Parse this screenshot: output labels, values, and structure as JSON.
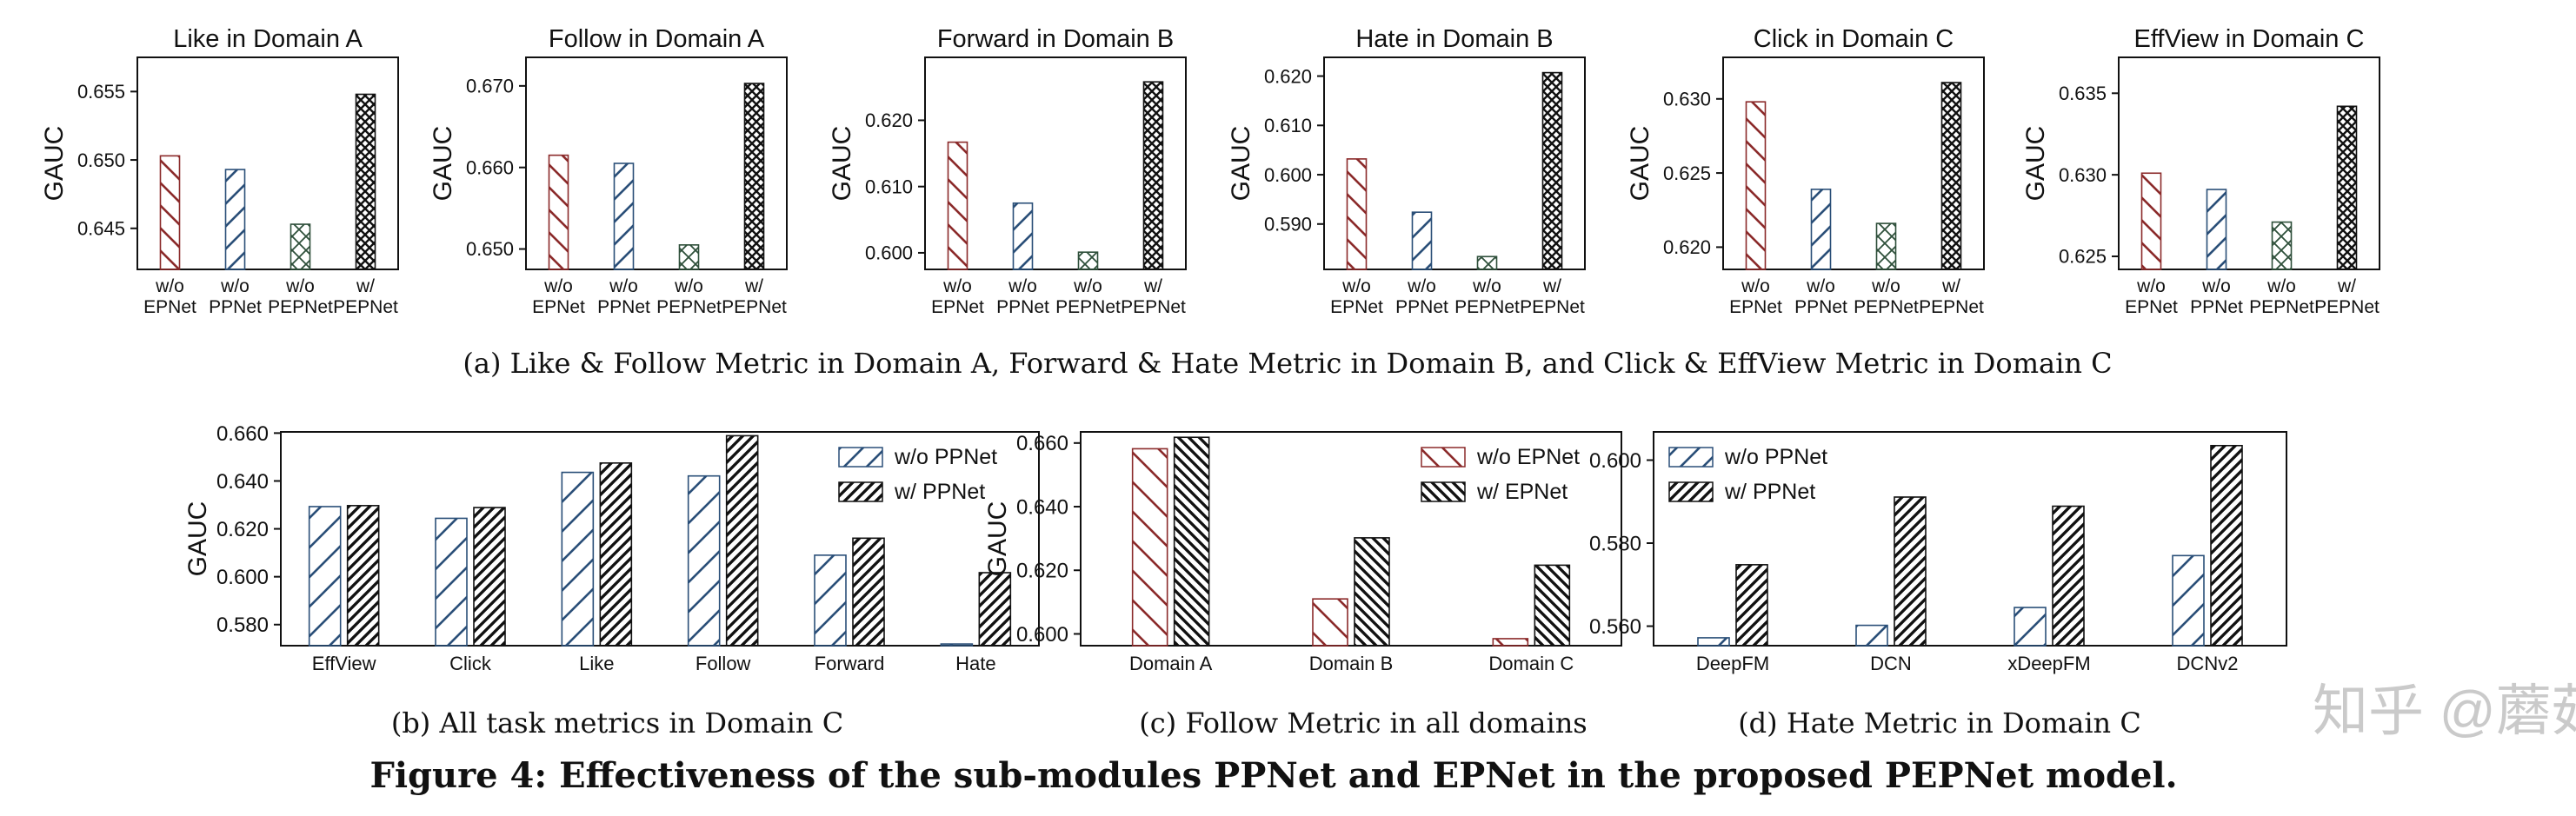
{
  "figure_caption": "Figure 4: Effectiveness of the sub-modules PPNet and EPNet in the proposed PEPNet model.",
  "subcaptions": {
    "a": "(a)  Like & Follow Metric in Domain A, Forward & Hate Metric in Domain B, and Click & EffView Metric in Domain C",
    "b": "(b)  All task metrics in Domain C",
    "c": "(c)  Follow Metric in all domains",
    "d": "(d)  Hate Metric in Domain C"
  },
  "watermark": "知乎 @蘑菇先生",
  "colors": {
    "red": "#8b2a2a",
    "blue": "#2a4f78",
    "green": "#2e4f3a",
    "black": "#111111"
  },
  "chart_data": [
    {
      "id": "a1",
      "type": "bar",
      "title": "Like in Domain A",
      "ylabel": "GAUC",
      "categories": [
        "w/o\nEPNet",
        "w/o\nPPNet",
        "w/o\nPEPNet",
        "w/\nPEPNet"
      ],
      "values": [
        0.6503,
        0.6493,
        0.6453,
        0.6548
      ],
      "ylim": [
        0.642,
        0.6575
      ],
      "yticks": [
        0.645,
        0.65,
        0.655
      ],
      "ytick_labels": [
        "0.645",
        "0.650",
        "0.655"
      ],
      "patterns": [
        "red",
        "blue",
        "green",
        "black"
      ]
    },
    {
      "id": "a2",
      "type": "bar",
      "title": "Follow in Domain A",
      "ylabel": "GAUC",
      "categories": [
        "w/o\nEPNet",
        "w/o\nPPNet",
        "w/o\nPEPNet",
        "w/\nPEPNet"
      ],
      "values": [
        0.6615,
        0.6605,
        0.6505,
        0.6703
      ],
      "ylim": [
        0.6475,
        0.6735
      ],
      "yticks": [
        0.65,
        0.66,
        0.67
      ],
      "ytick_labels": [
        "0.650",
        "0.660",
        "0.670"
      ],
      "patterns": [
        "red",
        "blue",
        "green",
        "black"
      ]
    },
    {
      "id": "a3",
      "type": "bar",
      "title": "Forward in Domain B",
      "ylabel": "GAUC",
      "categories": [
        "w/o\nEPNet",
        "w/o\nPPNet",
        "w/o\nPEPNet",
        "w/\nPEPNet"
      ],
      "values": [
        0.6167,
        0.6075,
        0.6001,
        0.6258
      ],
      "ylim": [
        0.5975,
        0.6295
      ],
      "yticks": [
        0.6,
        0.61,
        0.62
      ],
      "ytick_labels": [
        "0.600",
        "0.610",
        "0.620"
      ],
      "patterns": [
        "red",
        "blue",
        "green",
        "black"
      ]
    },
    {
      "id": "a4",
      "type": "bar",
      "title": "Hate in Domain B",
      "ylabel": "GAUC",
      "categories": [
        "w/o\nEPNet",
        "w/o\nPPNet",
        "w/o\nPEPNet",
        "w/\nPEPNet"
      ],
      "values": [
        0.6032,
        0.5924,
        0.5834,
        0.6207
      ],
      "ylim": [
        0.5808,
        0.6238
      ],
      "yticks": [
        0.59,
        0.6,
        0.61,
        0.62
      ],
      "ytick_labels": [
        "0.590",
        "0.600",
        "0.610",
        "0.620"
      ],
      "patterns": [
        "red",
        "blue",
        "green",
        "black"
      ]
    },
    {
      "id": "a5",
      "type": "bar",
      "title": "Click in Domain C",
      "ylabel": "GAUC",
      "categories": [
        "w/o\nEPNet",
        "w/o\nPPNet",
        "w/o\nPEPNet",
        "w/\nPEPNet"
      ],
      "values": [
        0.6298,
        0.6239,
        0.6216,
        0.6311
      ],
      "ylim": [
        0.6185,
        0.6328
      ],
      "yticks": [
        0.62,
        0.625,
        0.63
      ],
      "ytick_labels": [
        "0.620",
        "0.625",
        "0.630"
      ],
      "patterns": [
        "red",
        "blue",
        "green",
        "black"
      ]
    },
    {
      "id": "a6",
      "type": "bar",
      "title": "EffView in Domain C",
      "ylabel": "GAUC",
      "categories": [
        "w/o\nEPNet",
        "w/o\nPPNet",
        "w/o\nPEPNet",
        "w/\nPEPNet"
      ],
      "values": [
        0.6301,
        0.6291,
        0.6271,
        0.6342
      ],
      "ylim": [
        0.6242,
        0.6372
      ],
      "yticks": [
        0.625,
        0.63,
        0.635
      ],
      "ytick_labels": [
        "0.625",
        "0.630",
        "0.635"
      ],
      "patterns": [
        "red",
        "blue",
        "green",
        "black"
      ]
    },
    {
      "id": "b",
      "type": "bar",
      "title": "",
      "ylabel": "GAUC",
      "categories": [
        "EffView",
        "Click",
        "Like",
        "Follow",
        "Forward",
        "Hate"
      ],
      "series": [
        {
          "name": "w/o PPNet",
          "pattern": "blue",
          "values": [
            0.6293,
            0.6244,
            0.6436,
            0.6421,
            0.609,
            0.5719
          ]
        },
        {
          "name": "w/ PPNet",
          "pattern": "black",
          "values": [
            0.6297,
            0.6289,
            0.6475,
            0.6589,
            0.6161,
            0.6017
          ]
        }
      ],
      "ylim": [
        0.5712,
        0.6605
      ],
      "yticks": [
        0.58,
        0.6,
        0.62,
        0.64,
        0.66
      ],
      "ytick_labels": [
        "0.580",
        "0.600",
        "0.620",
        "0.640",
        "0.660"
      ],
      "legend": "top-right"
    },
    {
      "id": "c",
      "type": "bar",
      "title": "",
      "ylabel": "GAUC",
      "categories": [
        "Domain A",
        "Domain B",
        "Domain C"
      ],
      "series": [
        {
          "name": "w/o EPNet",
          "pattern": "red",
          "values": [
            0.6582,
            0.611,
            0.5985
          ]
        },
        {
          "name": "w/ EPNet",
          "pattern": "black",
          "values": [
            0.6618,
            0.6302,
            0.6216
          ]
        }
      ],
      "ylim": [
        0.5963,
        0.6635
      ],
      "yticks": [
        0.6,
        0.62,
        0.64,
        0.66
      ],
      "ytick_labels": [
        "0.600",
        "0.620",
        "0.640",
        "0.660"
      ],
      "legend": "top-right"
    },
    {
      "id": "d",
      "type": "bar",
      "title": "",
      "ylabel": "",
      "categories": [
        "DeepFM",
        "DCN",
        "xDeepFM",
        "DCNv2"
      ],
      "series": [
        {
          "name": "w/o PPNet",
          "pattern": "blue",
          "values": [
            0.5572,
            0.5602,
            0.5645,
            0.577
          ]
        },
        {
          "name": "w/ PPNet",
          "pattern": "black",
          "values": [
            0.5748,
            0.5911,
            0.5889,
            0.6035
          ]
        }
      ],
      "ylim": [
        0.5553,
        0.6068
      ],
      "yticks": [
        0.56,
        0.58,
        0.6
      ],
      "ytick_labels": [
        "0.560",
        "0.580",
        "0.600"
      ],
      "legend": "top-left"
    }
  ]
}
